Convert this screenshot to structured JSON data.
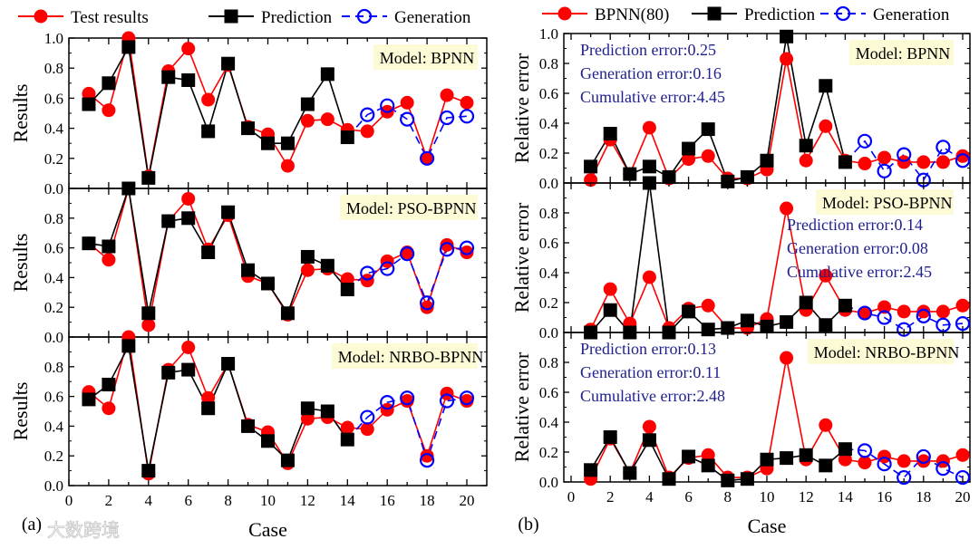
{
  "watermark": "大数跨境",
  "chart_data": [
    {
      "type": "line",
      "panel_label": "(a)",
      "xlabel": "Case",
      "ylabel": "Results",
      "xlim": [
        0,
        20
      ],
      "xticks": [
        "0",
        "2",
        "4",
        "6",
        "8",
        "10",
        "12",
        "14",
        "16",
        "18",
        "20"
      ],
      "legend": {
        "placement": "top",
        "entries": [
          "Test results",
          "Prediction",
          "Generation"
        ]
      },
      "colors": {
        "test": "#ff0000",
        "prediction": "#000000",
        "generation": "#0000ff",
        "box": "#fdfbd6"
      },
      "test_x": [
        1,
        2,
        3,
        4,
        5,
        6,
        7,
        8,
        9,
        10,
        11,
        12,
        13,
        14,
        15,
        16,
        17,
        18,
        19,
        20
      ],
      "test_values": [
        0.63,
        0.52,
        1.0,
        0.08,
        0.78,
        0.93,
        0.59,
        0.82,
        0.41,
        0.36,
        0.15,
        0.45,
        0.46,
        0.39,
        0.38,
        0.51,
        0.57,
        0.2,
        0.62,
        0.57
      ],
      "subplots": [
        {
          "model": "Model: BPNN",
          "ylim": [
            0,
            1.0
          ],
          "yticks": [
            "0.0",
            "0.2",
            "0.4",
            "0.6",
            "0.8",
            "1.0"
          ],
          "prediction": [
            0.56,
            0.7,
            0.94,
            0.07,
            0.74,
            0.72,
            0.38,
            0.83,
            0.4,
            0.3,
            0.3,
            0.56,
            0.76,
            0.34
          ],
          "generation": [
            0.49,
            0.55,
            0.46,
            0.2,
            0.47,
            0.48
          ]
        },
        {
          "model": "Model: PSO-BPNN",
          "ylim": [
            0,
            1.0
          ],
          "yticks": [
            "0.0",
            "0.2",
            "0.4",
            "0.6",
            "0.8"
          ],
          "prediction": [
            0.63,
            0.61,
            1.0,
            0.16,
            0.78,
            0.8,
            0.57,
            0.84,
            0.45,
            0.36,
            0.16,
            0.54,
            0.48,
            0.32
          ],
          "generation": [
            0.43,
            0.46,
            0.56,
            0.23,
            0.59,
            0.6
          ]
        },
        {
          "model": "Model: NRBO-BPNN",
          "ylim": [
            0,
            1.0
          ],
          "yticks": [
            "0.0",
            "0.2",
            "0.4",
            "0.6",
            "0.8"
          ],
          "prediction": [
            0.58,
            0.68,
            0.94,
            0.1,
            0.76,
            0.78,
            0.52,
            0.82,
            0.4,
            0.3,
            0.17,
            0.52,
            0.5,
            0.31
          ],
          "generation": [
            0.46,
            0.56,
            0.59,
            0.17,
            0.57,
            0.59
          ]
        }
      ]
    },
    {
      "type": "line",
      "panel_label": "(b)",
      "xlabel": "Case",
      "ylabel": "Relative error",
      "xlim": [
        0,
        20
      ],
      "xticks": [
        "0",
        "2",
        "4",
        "6",
        "8",
        "10",
        "12",
        "14",
        "16",
        "18",
        "20"
      ],
      "legend": {
        "placement": "top",
        "entries": [
          "BPNN(80)",
          "Prediction",
          "Generation"
        ]
      },
      "colors": {
        "test": "#ff0000",
        "prediction": "#000000",
        "generation": "#0000ff",
        "box": "#fdfbd6",
        "annotation": "#1f1f8f"
      },
      "test_x": [
        1,
        2,
        3,
        4,
        5,
        6,
        7,
        8,
        9,
        10,
        11,
        12,
        13,
        14,
        15,
        16,
        17,
        18,
        19,
        20
      ],
      "test_values": [
        0.02,
        0.29,
        0.06,
        0.37,
        0.03,
        0.16,
        0.18,
        0.03,
        0.03,
        0.09,
        0.83,
        0.15,
        0.38,
        0.15,
        0.13,
        0.17,
        0.14,
        0.14,
        0.14,
        0.18
      ],
      "subplots": [
        {
          "model": "Model: BPNN",
          "ylim": [
            0,
            1.0
          ],
          "yticks": [
            "0.0",
            "0.2",
            "0.4",
            "0.6",
            "0.8",
            "1.0"
          ],
          "errors": [
            "Prediction error:0.25",
            "Generation error:0.16",
            "Cumulative error:4.45"
          ],
          "prediction": [
            0.11,
            0.33,
            0.06,
            0.11,
            0.04,
            0.23,
            0.36,
            0.01,
            0.04,
            0.15,
            0.98,
            0.25,
            0.65,
            0.14
          ],
          "generation": [
            0.28,
            0.08,
            0.19,
            0.02,
            0.24,
            0.15
          ]
        },
        {
          "model": "Model: PSO-BPNN",
          "ylim": [
            0,
            1.0
          ],
          "yticks": [
            "0.0",
            "0.2",
            "0.4",
            "0.6",
            "0.8"
          ],
          "errors": [
            "Prediction error:0.14",
            "Generation error:0.08",
            "Cumulative error:2.45"
          ],
          "prediction": [
            0.0,
            0.15,
            0.0,
            1.0,
            0.0,
            0.14,
            0.02,
            0.03,
            0.08,
            0.04,
            0.07,
            0.2,
            0.05,
            0.18
          ],
          "generation": [
            0.13,
            0.1,
            0.02,
            0.11,
            0.05,
            0.06
          ]
        },
        {
          "model": "Model: NRBO-BPNN",
          "ylim": [
            0,
            1.0
          ],
          "yticks": [
            "0.0",
            "0.2",
            "0.4",
            "0.6",
            "0.8"
          ],
          "errors": [
            "Prediction error:0.13",
            "Generation error:0.11",
            "Cumulative error:2.48"
          ],
          "prediction": [
            0.08,
            0.3,
            0.06,
            0.28,
            0.02,
            0.17,
            0.11,
            0.01,
            0.02,
            0.15,
            0.16,
            0.18,
            0.11,
            0.22
          ],
          "generation": [
            0.21,
            0.12,
            0.03,
            0.17,
            0.09,
            0.03
          ]
        }
      ]
    }
  ]
}
